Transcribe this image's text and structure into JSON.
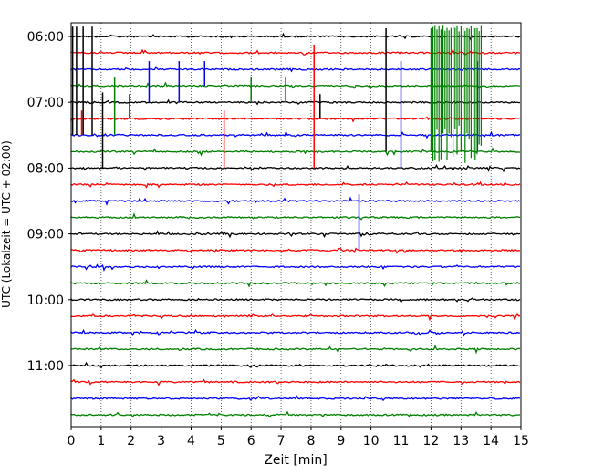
{
  "chart_data": {
    "type": "line",
    "xlabel": "Zeit  [min]",
    "ylabel": "UTC (Lokalzeit = UTC + 02:00)",
    "xlim": [
      0,
      15
    ],
    "x_ticks": [
      0,
      1,
      2,
      3,
      4,
      5,
      6,
      7,
      8,
      9,
      10,
      11,
      12,
      13,
      14,
      15
    ],
    "y_tick_labels": [
      "06:00",
      "07:00",
      "08:00",
      "09:00",
      "10:00",
      "11:00"
    ],
    "grid": "vertical dotted",
    "trace_start_hour": 6.0,
    "trace_interval_minutes": 15,
    "trace_colors": [
      "#000000",
      "#ff0000",
      "#0000ff",
      "#008000"
    ],
    "events": [
      {
        "x": 0.05,
        "trace": 0,
        "amplitude": 1.2,
        "extend": 6
      },
      {
        "x": 0.18,
        "trace": 0,
        "amplitude": 1.2,
        "extend": 6
      },
      {
        "x": 0.4,
        "trace": 0,
        "amplitude": 1.2,
        "extend": 6
      },
      {
        "x": 0.7,
        "trace": 0,
        "amplitude": 1.2,
        "extend": 6
      },
      {
        "x": 0.35,
        "trace": 5,
        "amplitude": 1.0,
        "extend": 1
      },
      {
        "x": 1.05,
        "trace": 4,
        "amplitude": 1.2,
        "extend": 4
      },
      {
        "x": 1.45,
        "trace": 3,
        "amplitude": 1.0,
        "extend": 3
      },
      {
        "x": 1.95,
        "trace": 4,
        "amplitude": 1.0,
        "extend": 1
      },
      {
        "x": 2.6,
        "trace": 2,
        "amplitude": 1.0,
        "extend": 2
      },
      {
        "x": 3.6,
        "trace": 2,
        "amplitude": 1.0,
        "extend": 2
      },
      {
        "x": 4.45,
        "trace": 2,
        "amplitude": 1.0,
        "extend": 1
      },
      {
        "x": 5.1,
        "trace": 5,
        "amplitude": 1.0,
        "extend": 3
      },
      {
        "x": 6.0,
        "trace": 3,
        "amplitude": 1.0,
        "extend": 1
      },
      {
        "x": 7.15,
        "trace": 3,
        "amplitude": 1.0,
        "extend": 1
      },
      {
        "x": 8.1,
        "trace": 1,
        "amplitude": 1.0,
        "extend": 7
      },
      {
        "x": 8.3,
        "trace": 4,
        "amplitude": 1.0,
        "extend": 1
      },
      {
        "x": 9.6,
        "trace": 10,
        "amplitude": 0.8,
        "extend": 3
      },
      {
        "x": 10.5,
        "trace": 0,
        "amplitude": 1.0,
        "extend": 7
      },
      {
        "x": 11.0,
        "trace": 2,
        "amplitude": 1.0,
        "extend": 6
      },
      {
        "x": 13.55,
        "trace": 2,
        "amplitude": 1.0,
        "extend": 5
      }
    ],
    "noise_segment": {
      "x_start": 12.0,
      "x_end": 13.7,
      "trace": 3,
      "color": "#008000"
    }
  }
}
